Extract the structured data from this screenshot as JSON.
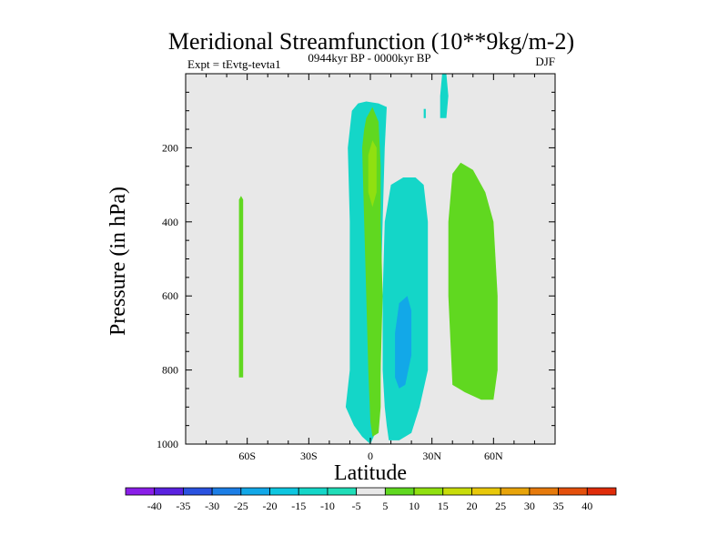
{
  "chart_data": {
    "type": "contour",
    "title": "Meridional Streamfunction (10**9kg/m-2)",
    "left_label": "Expt = tEvtg-tevta1",
    "center_label": "0944kyr BP - 0000kyr BP",
    "right_label": "DJF",
    "xlabel": "Latitude",
    "ylabel": "Pressure (in hPa)",
    "xlim": [
      -90,
      90
    ],
    "ylim": [
      1000,
      0
    ],
    "x_ticks": [
      {
        "value": -60,
        "label": "60S"
      },
      {
        "value": -30,
        "label": "30S"
      },
      {
        "value": 0,
        "label": "0"
      },
      {
        "value": 30,
        "label": "30N"
      },
      {
        "value": 60,
        "label": "60N"
      }
    ],
    "y_ticks": [
      {
        "value": 200,
        "label": "200"
      },
      {
        "value": 400,
        "label": "400"
      },
      {
        "value": 600,
        "label": "600"
      },
      {
        "value": 800,
        "label": "800"
      },
      {
        "value": 1000,
        "label": "1000"
      }
    ],
    "background_color": "#e8e8e8",
    "colorbar": {
      "labels": [
        "-40",
        "-35",
        "-30",
        "-25",
        "-20",
        "-15",
        "-10",
        "-5",
        "5",
        "10",
        "15",
        "20",
        "25",
        "30",
        "35",
        "40"
      ],
      "colors": [
        "#8a1ee8",
        "#5a22e0",
        "#2a52e0",
        "#1c7ee6",
        "#12a8e8",
        "#0ec6e0",
        "#14d6c8",
        "#20ddb8",
        "#e8e8e8",
        "#60d820",
        "#90e010",
        "#c8dc0a",
        "#e8c80a",
        "#e8a40a",
        "#e67a0c",
        "#e4500c",
        "#e02c0a"
      ]
    },
    "regions": [
      {
        "name": "contour-region-tropical-negative-left",
        "level": "-10",
        "color": "#14d6c8",
        "points": [
          [
            -12,
            900
          ],
          [
            -10,
            800
          ],
          [
            -10,
            600
          ],
          [
            -10,
            400
          ],
          [
            -11,
            200
          ],
          [
            -9,
            100
          ],
          [
            -6,
            80
          ],
          [
            -2,
            75
          ],
          [
            4,
            80
          ],
          [
            8,
            90
          ],
          [
            7,
            200
          ],
          [
            6,
            400
          ],
          [
            5,
            600
          ],
          [
            5,
            800
          ],
          [
            4,
            950
          ],
          [
            0,
            1000
          ],
          [
            -4,
            980
          ],
          [
            -8,
            950
          ]
        ]
      },
      {
        "name": "contour-region-subtropical-negative-right",
        "level": "-10",
        "color": "#14d6c8",
        "points": [
          [
            9,
            990
          ],
          [
            8,
            950
          ],
          [
            7,
            900
          ],
          [
            6,
            800
          ],
          [
            6,
            600
          ],
          [
            7,
            400
          ],
          [
            10,
            300
          ],
          [
            16,
            280
          ],
          [
            22,
            280
          ],
          [
            26,
            300
          ],
          [
            28,
            400
          ],
          [
            28,
            600
          ],
          [
            28,
            800
          ],
          [
            24,
            900
          ],
          [
            20,
            970
          ],
          [
            14,
            990
          ]
        ]
      },
      {
        "name": "contour-region-subtropical-negative-core",
        "level": "-15",
        "color": "#12a8e8",
        "points": [
          [
            12,
            820
          ],
          [
            12,
            700
          ],
          [
            14,
            620
          ],
          [
            18,
            600
          ],
          [
            20,
            640
          ],
          [
            20,
            760
          ],
          [
            17,
            840
          ],
          [
            14,
            850
          ]
        ]
      },
      {
        "name": "contour-region-equatorial-positive",
        "level": "10",
        "color": "#60d820",
        "points": [
          [
            -3,
            150
          ],
          [
            -2,
            120
          ],
          [
            0,
            100
          ],
          [
            1,
            90
          ],
          [
            4,
            130
          ],
          [
            5,
            250
          ],
          [
            5,
            400
          ],
          [
            6,
            600
          ],
          [
            5,
            800
          ],
          [
            5,
            900
          ],
          [
            4,
            970
          ],
          [
            1,
            980
          ],
          [
            0,
            940
          ],
          [
            -1,
            800
          ],
          [
            -2,
            600
          ],
          [
            -3,
            400
          ],
          [
            -4,
            200
          ]
        ]
      },
      {
        "name": "contour-region-equatorial-positive-core",
        "level": "15",
        "color": "#90e010",
        "points": [
          [
            -1,
            220
          ],
          [
            1,
            180
          ],
          [
            3,
            200
          ],
          [
            3,
            320
          ],
          [
            1,
            360
          ],
          [
            -1,
            320
          ]
        ]
      },
      {
        "name": "contour-region-midlat-positive",
        "level": "10",
        "color": "#60d820",
        "points": [
          [
            40,
            840
          ],
          [
            38,
            600
          ],
          [
            38,
            400
          ],
          [
            40,
            270
          ],
          [
            44,
            240
          ],
          [
            50,
            260
          ],
          [
            56,
            320
          ],
          [
            60,
            400
          ],
          [
            62,
            600
          ],
          [
            62,
            800
          ],
          [
            60,
            880
          ],
          [
            54,
            880
          ],
          [
            46,
            860
          ]
        ]
      },
      {
        "name": "contour-region-southern-positive-sliver",
        "level": "10",
        "color": "#60d820",
        "points": [
          [
            -64,
            820
          ],
          [
            -64,
            340
          ],
          [
            -63,
            330
          ],
          [
            -62,
            340
          ],
          [
            -62,
            820
          ]
        ]
      },
      {
        "name": "contour-region-upper-negative-spike",
        "level": "-10",
        "color": "#14d6c8",
        "points": [
          [
            34,
            120
          ],
          [
            34,
            60
          ],
          [
            35,
            0
          ],
          [
            37,
            0
          ],
          [
            38,
            60
          ],
          [
            37,
            120
          ]
        ]
      },
      {
        "name": "contour-region-upper-small-spike",
        "level": "-10",
        "color": "#14d6c8",
        "points": [
          [
            26,
            120
          ],
          [
            26,
            95
          ],
          [
            27,
            95
          ],
          [
            27,
            120
          ]
        ]
      }
    ]
  }
}
